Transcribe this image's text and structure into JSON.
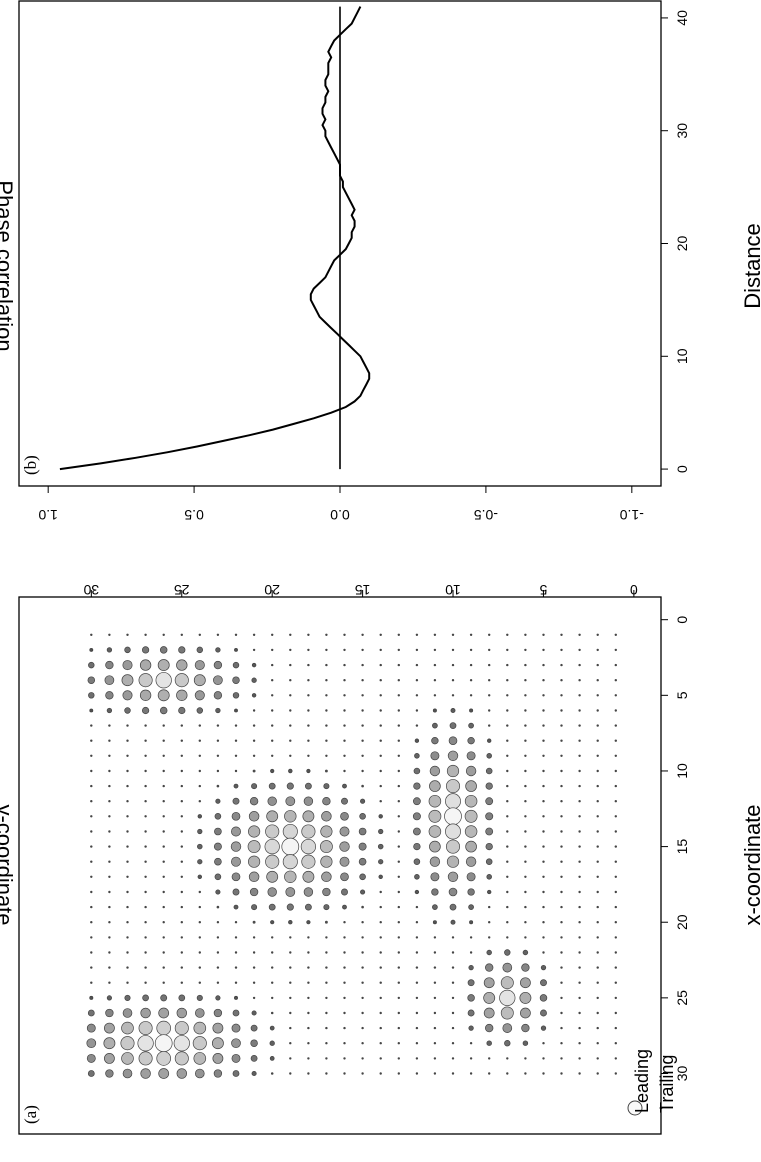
{
  "chart_data": [
    {
      "panel_label": "(a)",
      "type": "scatter",
      "title": "",
      "xlabel": "x-coordinate",
      "ylabel": "y-coordinate",
      "xlim": [
        -1.5,
        34
      ],
      "ylim": [
        -1.5,
        34
      ],
      "xticks": [
        "0",
        "5",
        "10",
        "15",
        "20",
        "25",
        "30"
      ],
      "yticks": [
        "0",
        "5",
        "10",
        "15",
        "20",
        "25",
        "30"
      ],
      "legend": {
        "position": "top-right",
        "entries": [
          "Leading",
          "Trailing"
        ]
      },
      "grid": "30 x 30 lattice of sites (x = 1..30, y = 1..30); symbol size and lightness encode phase lead (large light = leading, small dark dot = trailing)",
      "leading_region_rows": [
        {
          "y": 30,
          "x": [
            1,
            2,
            3,
            4,
            5,
            6,
            7,
            8,
            9,
            10,
            11,
            12,
            13,
            14,
            15,
            16,
            17,
            18,
            19,
            20,
            21,
            22,
            23,
            24,
            25,
            26,
            27,
            28,
            29,
            30
          ]
        },
        {
          "y": 20,
          "x": [
            1,
            2,
            27,
            28,
            29,
            30
          ]
        },
        {
          "y": 9,
          "x": [
            7,
            8,
            27,
            28,
            29,
            30
          ]
        }
      ]
    },
    {
      "panel_label": "(b)",
      "type": "line",
      "title": "",
      "xlabel": "Distance",
      "ylabel": "Phase correlation",
      "xlim": [
        -1.5,
        41.5
      ],
      "ylim": [
        -1.1,
        1.1
      ],
      "xticks": [
        "0",
        "10",
        "20",
        "30",
        "40"
      ],
      "yticks": [
        "-1.0",
        "-0.5",
        "0.0",
        "0.5",
        "1.0"
      ],
      "reference_line": 0,
      "x": [
        0,
        0.5,
        1,
        1.5,
        2,
        2.5,
        3,
        3.5,
        4,
        4.5,
        5,
        5.5,
        6,
        6.5,
        7,
        7.5,
        8,
        8.5,
        9,
        9.5,
        10,
        10.5,
        11,
        11.5,
        12,
        12.5,
        13,
        13.5,
        14,
        14.5,
        15,
        15.5,
        16,
        16.5,
        17,
        17.5,
        18,
        18.5,
        19,
        19.5,
        20,
        20.5,
        21,
        21.5,
        22,
        22.5,
        23,
        23.5,
        24,
        24.5,
        25,
        25.5,
        26,
        26.5,
        27,
        27.5,
        28,
        28.5,
        29,
        29.5,
        30,
        30.5,
        31,
        31.5,
        32,
        32.5,
        33,
        33.5,
        34,
        34.5,
        35,
        35.5,
        36,
        36.5,
        37,
        37.5,
        38,
        38.5,
        39,
        39.5,
        40,
        40.5,
        41
      ],
      "y": [
        0.96,
        0.82,
        0.7,
        0.59,
        0.49,
        0.4,
        0.31,
        0.23,
        0.16,
        0.09,
        0.03,
        -0.02,
        -0.05,
        -0.07,
        -0.08,
        -0.09,
        -0.1,
        -0.1,
        -0.09,
        -0.08,
        -0.07,
        -0.05,
        -0.03,
        -0.01,
        0.01,
        0.03,
        0.05,
        0.07,
        0.08,
        0.09,
        0.1,
        0.1,
        0.09,
        0.07,
        0.05,
        0.04,
        0.03,
        0.02,
        0.0,
        -0.02,
        -0.03,
        -0.04,
        -0.04,
        -0.05,
        -0.05,
        -0.04,
        -0.05,
        -0.04,
        -0.03,
        -0.02,
        -0.01,
        -0.01,
        0.0,
        0.0,
        0.0,
        0.01,
        0.02,
        0.03,
        0.04,
        0.05,
        0.05,
        0.06,
        0.05,
        0.06,
        0.06,
        0.05,
        0.05,
        0.04,
        0.05,
        0.05,
        0.04,
        0.04,
        0.04,
        0.03,
        0.04,
        0.03,
        0.02,
        0.0,
        -0.02,
        -0.04,
        -0.05,
        -0.06,
        -0.07
      ]
    }
  ]
}
